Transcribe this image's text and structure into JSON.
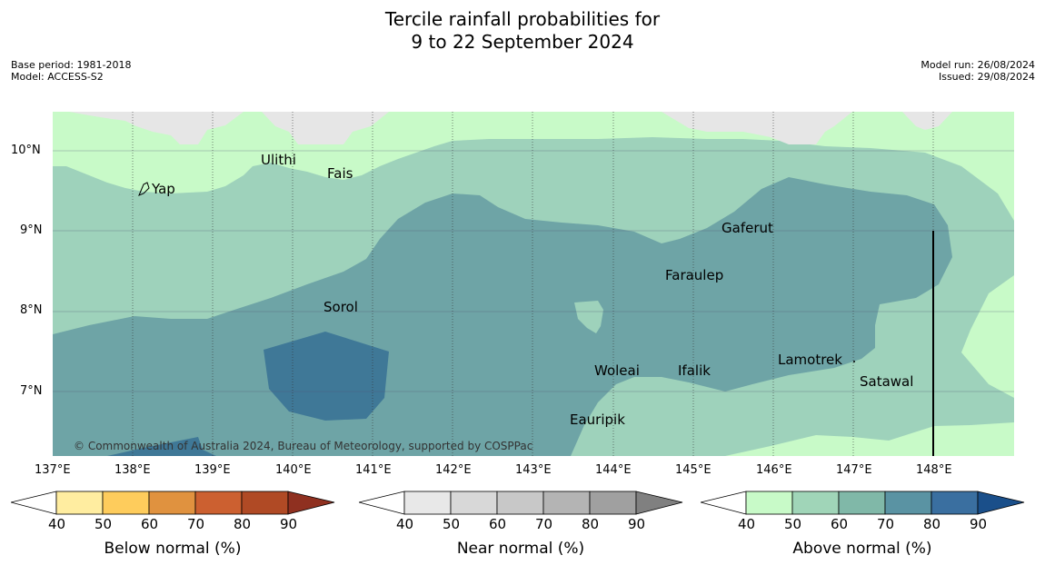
{
  "title_line1": "Tercile rainfall probabilities for",
  "title_line2": "9 to 22 September 2024",
  "meta_left": [
    "Base period: 1981-2018",
    "Model: ACCESS-S2"
  ],
  "meta_right": [
    "Model run: 26/08/2024",
    "Issued: 29/08/2024"
  ],
  "copyright": "© Commonwealth of Australia 2024, Bureau of Meteorology, supported by COSPPac",
  "lat_labels": [
    "10°N",
    "9°N",
    "8°N",
    "7°N"
  ],
  "lon_labels": [
    "137°E",
    "138°E",
    "139°E",
    "140°E",
    "141°E",
    "142°E",
    "143°E",
    "144°E",
    "145°E",
    "146°E",
    "147°E",
    "148°E"
  ],
  "places": [
    "Yap",
    "Ulithi",
    "Fais",
    "Gaferut",
    "Faraulep",
    "Sorol",
    "Lamotrek",
    "Woleai",
    "Ifalik",
    "Satawal",
    "Eauripik"
  ],
  "colorbars": [
    {
      "label": "Below normal (%)",
      "ticks": [
        "40",
        "50",
        "60",
        "70",
        "80",
        "90"
      ],
      "colors": [
        "#ffeda0",
        "#fecc5c",
        "#e0923f",
        "#cc6030",
        "#b04a25",
        "#8f3020"
      ]
    },
    {
      "label": "Near normal (%)",
      "ticks": [
        "40",
        "50",
        "60",
        "70",
        "80",
        "90"
      ],
      "colors": [
        "#e8e8e8",
        "#d8d8d8",
        "#c8c8c8",
        "#b4b4b4",
        "#a0a0a0",
        "#808080"
      ]
    },
    {
      "label": "Above normal (%)",
      "ticks": [
        "40",
        "50",
        "60",
        "70",
        "80",
        "90"
      ],
      "colors": [
        "#c8fac8",
        "#a0d5b8",
        "#80b8a8",
        "#5a93a3",
        "#3a6fa0",
        "#1a4f8a"
      ]
    }
  ],
  "colors": {
    "above_40": "#c8fac8",
    "above_50": "#9ed2bb",
    "above_60": "#6ea4a6",
    "above_70": "#3f7897",
    "above_80": "#2c5c96",
    "near_40": "#e6e6e6"
  }
}
